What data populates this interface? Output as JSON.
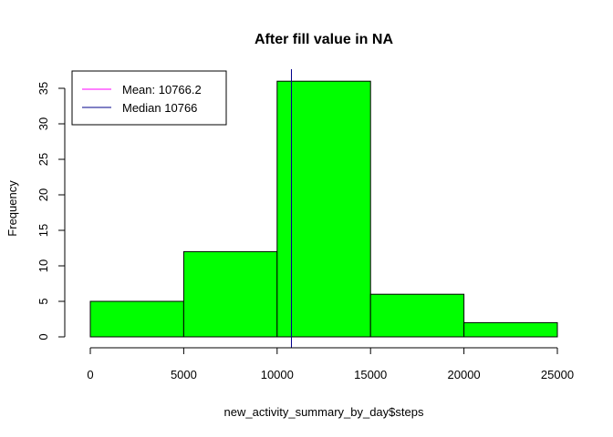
{
  "chart_data": {
    "type": "bar",
    "title": "After fill value in NA",
    "xlabel": "new_activity_summary_by_day$steps",
    "ylabel": "Frequency",
    "bins": [
      {
        "start": 0,
        "end": 5000,
        "count": 5
      },
      {
        "start": 5000,
        "end": 10000,
        "count": 12
      },
      {
        "start": 10000,
        "end": 15000,
        "count": 36
      },
      {
        "start": 15000,
        "end": 20000,
        "count": 6
      },
      {
        "start": 20000,
        "end": 25000,
        "count": 2
      }
    ],
    "xlim": [
      0,
      25000
    ],
    "ylim": [
      0,
      36
    ],
    "x_ticks": [
      0,
      5000,
      10000,
      15000,
      20000,
      25000
    ],
    "x_tick_labels": [
      "0",
      "5000",
      "10000",
      "15000",
      "20000",
      "25000"
    ],
    "y_ticks": [
      0,
      5,
      10,
      15,
      20,
      25,
      30,
      35
    ],
    "y_tick_labels": [
      "0",
      "5",
      "10",
      "15",
      "20",
      "25",
      "30",
      "35"
    ],
    "bar_color": "#00ff00",
    "border_color": "#000000",
    "grid": false,
    "vlines": [
      {
        "name": "Mean: 10766.2",
        "value": 10766.19,
        "color": "#ff00ff"
      },
      {
        "name": "Median 10766",
        "value": 10766,
        "color": "#00008b"
      }
    ],
    "legend": {
      "placement": "top-left",
      "entries": [
        "Mean: 10766.2",
        "Median 10766"
      ]
    }
  }
}
